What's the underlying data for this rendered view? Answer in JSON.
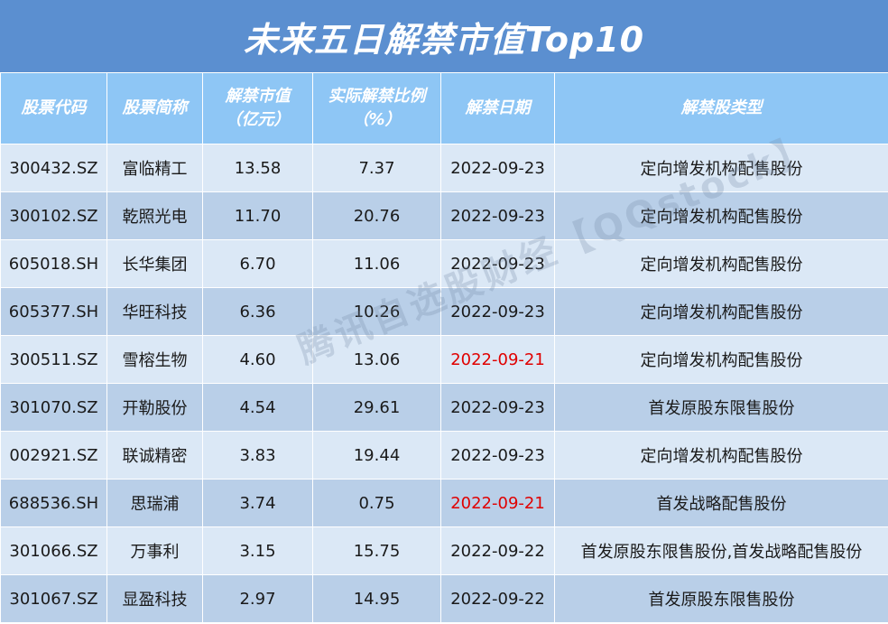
{
  "title": "未来五日解禁市值Top10",
  "watermark": "腾讯自选股财经【QQstock】",
  "headers": {
    "code": "股票代码",
    "name": "股票简称",
    "value_line1": "解禁市值",
    "value_line2": "（亿元）",
    "ratio_line1": "实际解禁比例",
    "ratio_line2": "（%）",
    "date": "解禁日期",
    "type": "解禁股类型"
  },
  "colors": {
    "title_bg": "#5b8fd0",
    "header_bg": "#8ec6f5",
    "row_light": "#dbe8f6",
    "row_dark": "#b9cfe8",
    "highlight_date": "#e00000"
  },
  "rows": [
    {
      "code": "300432.SZ",
      "name": "富临精工",
      "value": "13.58",
      "ratio": "7.37",
      "date": "2022-09-23",
      "type": "定向增发机构配售股份",
      "date_highlight": false
    },
    {
      "code": "300102.SZ",
      "name": "乾照光电",
      "value": "11.70",
      "ratio": "20.76",
      "date": "2022-09-23",
      "type": "定向增发机构配售股份",
      "date_highlight": false
    },
    {
      "code": "605018.SH",
      "name": "长华集团",
      "value": "6.70",
      "ratio": "11.06",
      "date": "2022-09-23",
      "type": "定向增发机构配售股份",
      "date_highlight": false
    },
    {
      "code": "605377.SH",
      "name": "华旺科技",
      "value": "6.36",
      "ratio": "10.26",
      "date": "2022-09-23",
      "type": "定向增发机构配售股份",
      "date_highlight": false
    },
    {
      "code": "300511.SZ",
      "name": "雪榕生物",
      "value": "4.60",
      "ratio": "13.06",
      "date": "2022-09-21",
      "type": "定向增发机构配售股份",
      "date_highlight": true
    },
    {
      "code": "301070.SZ",
      "name": "开勒股份",
      "value": "4.54",
      "ratio": "29.61",
      "date": "2022-09-23",
      "type": "首发原股东限售股份",
      "date_highlight": false
    },
    {
      "code": "002921.SZ",
      "name": "联诚精密",
      "value": "3.83",
      "ratio": "19.44",
      "date": "2022-09-23",
      "type": "定向增发机构配售股份",
      "date_highlight": false
    },
    {
      "code": "688536.SH",
      "name": "思瑞浦",
      "value": "3.74",
      "ratio": "0.75",
      "date": "2022-09-21",
      "type": "首发战略配售股份",
      "date_highlight": true
    },
    {
      "code": "301066.SZ",
      "name": "万事利",
      "value": "3.15",
      "ratio": "15.75",
      "date": "2022-09-22",
      "type": "首发原股东限售股份,首发战略配售股份",
      "date_highlight": false
    },
    {
      "code": "301067.SZ",
      "name": "显盈科技",
      "value": "2.97",
      "ratio": "14.95",
      "date": "2022-09-22",
      "type": "首发原股东限售股份",
      "date_highlight": false
    }
  ]
}
